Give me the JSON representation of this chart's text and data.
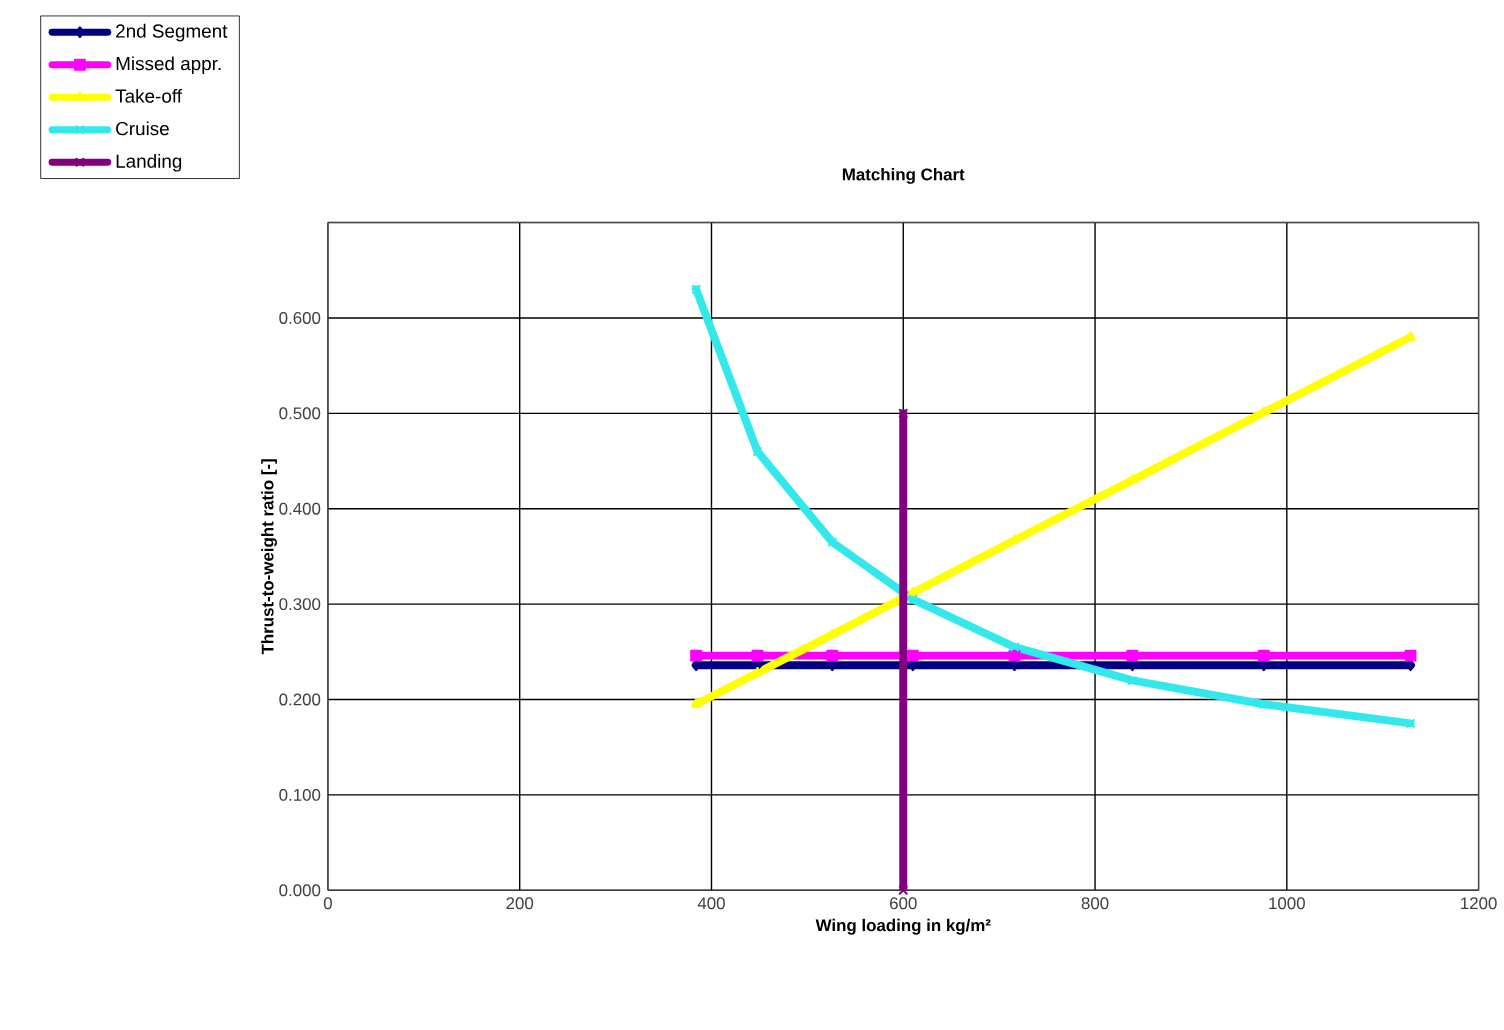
{
  "chart_data": {
    "type": "line",
    "title": "Matching Chart",
    "xlabel": "Wing loading in kg/m²",
    "ylabel": "Thrust-to-weight ratio [-]",
    "xlim": [
      0,
      1200
    ],
    "ylim": [
      0,
      0.7
    ],
    "xticks": [
      0,
      200,
      400,
      600,
      800,
      1000,
      1200
    ],
    "yticks": [
      {
        "value": 0,
        "label": "0.000"
      },
      {
        "value": 0.1,
        "label": "0.100"
      },
      {
        "value": 0.2,
        "label": "0.200"
      },
      {
        "value": 0.3,
        "label": "0.300"
      },
      {
        "value": 0.4,
        "label": "0.400"
      },
      {
        "value": 0.5,
        "label": "0.500"
      },
      {
        "value": 0.6,
        "label": "0.600"
      },
      {
        "value": 0.7,
        "label": null
      }
    ],
    "grid": true,
    "legend": "top left",
    "line_style": "solid",
    "x": [
      384,
      448,
      526,
      610,
      716,
      839,
      976,
      1129
    ],
    "series": [
      {
        "name": "2nd Segment",
        "color": "#000080",
        "marker": "diamond",
        "values": [
          0.236,
          0.236,
          0.236,
          0.236,
          0.236,
          0.236,
          0.236,
          0.236
        ]
      },
      {
        "name": "Missed appr.",
        "color": "#ff00ff",
        "marker": "square",
        "values": [
          0.246,
          0.246,
          0.246,
          0.246,
          0.246,
          0.246,
          0.246,
          0.246
        ]
      },
      {
        "name": "Take-off",
        "color": "#ffff00",
        "marker": "triangle",
        "values": [
          0.195,
          0.228,
          0.268,
          0.312,
          0.367,
          0.43,
          0.501,
          0.58
        ]
      },
      {
        "name": "Cruise",
        "color": "#33e8ea",
        "marker": "cross",
        "values": [
          0.63,
          0.46,
          0.365,
          0.305,
          0.255,
          0.22,
          0.195,
          0.175
        ]
      },
      {
        "name": "Landing",
        "color": "#800080",
        "marker": "cross",
        "x": [
          600,
          600
        ],
        "values": [
          0,
          0.5
        ]
      }
    ]
  }
}
